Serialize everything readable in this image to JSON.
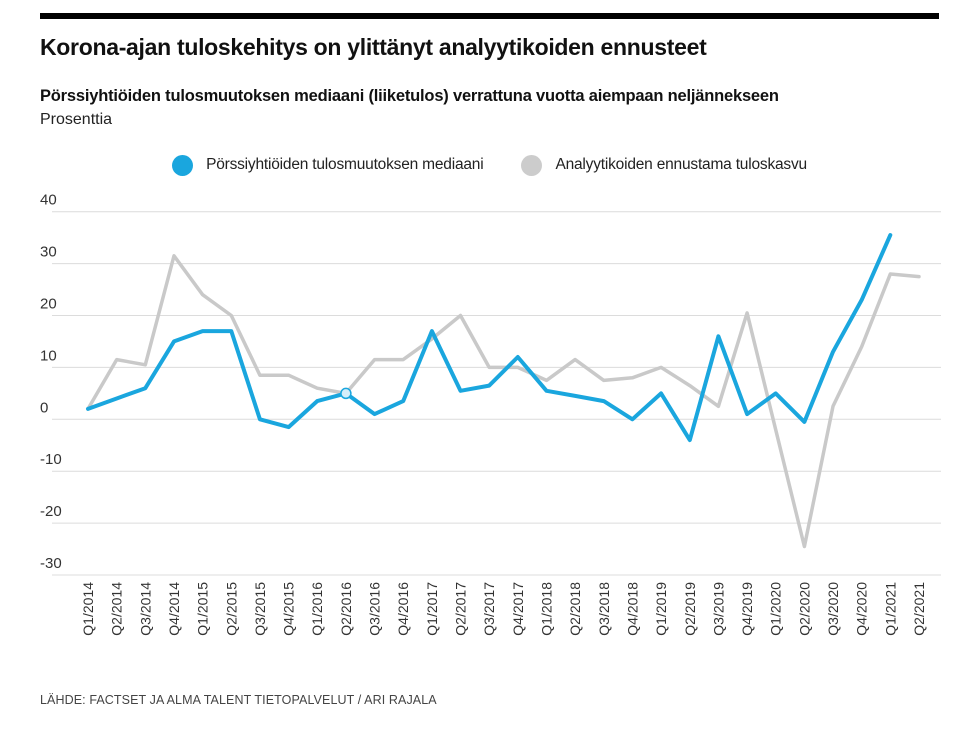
{
  "page": {
    "title": "Korona-ajan tuloskehitys on ylittänyt analyytikoiden ennusteet",
    "subtitle": "Pörssiyhtiöiden tulosmuutoksen mediaani (liiketulos) verrattuna vuotta aiempaan neljännekseen",
    "unit_label": "Prosenttia",
    "source": "LÄHDE: FACTSET JA ALMA TALENT TIETOPALVELUT / ARI RAJALA"
  },
  "legend": {
    "items": [
      {
        "label": "Pörssiyhtiöiden tulosmuutoksen mediaani",
        "color": "#1aa6de"
      },
      {
        "label": "Analyytikoiden ennustama tuloskasvu",
        "color": "#cccccc"
      }
    ]
  },
  "chart_data": {
    "type": "line",
    "title": "Korona-ajan tuloskehitys on ylittänyt analyytikoiden ennusteet",
    "subtitle": "Pörssiyhtiöiden tulosmuutoksen mediaani (liiketulos) verrattuna vuotta aiempaan neljännekseen",
    "ylabel": "Prosenttia",
    "xlabel": "",
    "ylim": [
      -30,
      40
    ],
    "yticks": [
      40,
      30,
      20,
      10,
      0,
      -10,
      -20,
      -30
    ],
    "grid": true,
    "legend_position": "top",
    "categories": [
      "Q1/2014",
      "Q2/2014",
      "Q3/2014",
      "Q4/2014",
      "Q1/2015",
      "Q2/2015",
      "Q3/2015",
      "Q4/2015",
      "Q1/2016",
      "Q2/2016",
      "Q3/2016",
      "Q4/2016",
      "Q1/2017",
      "Q2/2017",
      "Q3/2017",
      "Q4/2017",
      "Q1/2018",
      "Q2/2018",
      "Q3/2018",
      "Q4/2018",
      "Q1/2019",
      "Q2/2019",
      "Q3/2019",
      "Q4/2019",
      "Q1/2020",
      "Q2/2020",
      "Q3/2020",
      "Q4/2020",
      "Q1/2021",
      "Q2/2021"
    ],
    "series": [
      {
        "name": "Pörssiyhtiöiden tulosmuutoksen mediaani",
        "color": "#1aa6de",
        "values": [
          2,
          4,
          6,
          15,
          17,
          17,
          0,
          -1.5,
          3.5,
          5,
          1,
          3.5,
          17,
          5.5,
          6.5,
          12,
          5.5,
          4.5,
          3.5,
          0,
          5,
          -4,
          16,
          1,
          5,
          -0.5,
          13,
          23,
          35.5,
          null
        ]
      },
      {
        "name": "Analyytikoiden ennustama tuloskasvu",
        "color": "#c9c9c9",
        "values": [
          2,
          11.5,
          10.5,
          31.5,
          24,
          20,
          8.5,
          8.5,
          6,
          5,
          11.5,
          11.5,
          15.5,
          20,
          10,
          10,
          7.5,
          11.5,
          7.5,
          8,
          10,
          6.5,
          2.5,
          20.5,
          -2,
          -24.5,
          2.5,
          14,
          28,
          27.5
        ]
      }
    ],
    "highlight_point": {
      "series": "Pörssiyhtiöiden tulosmuutoksen mediaani",
      "category": "Q2/2016",
      "value": 5
    }
  }
}
